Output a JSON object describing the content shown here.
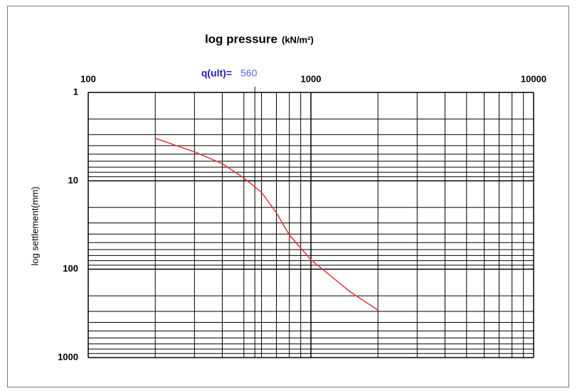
{
  "chart_data": {
    "type": "line",
    "title": "log pressure",
    "title_unit": "(kN/m²)",
    "y_label": "log settlement(mm)",
    "annotation": {
      "label": "q(ult)=",
      "value": 560
    },
    "x": [
      200,
      300,
      400,
      500,
      600,
      700,
      800,
      1000,
      1500,
      2000
    ],
    "series": [
      {
        "name": "settlement",
        "color": "#e8303a",
        "values": [
          3.3,
          4.7,
          6.4,
          9.3,
          13.5,
          23,
          41,
          78,
          180,
          290
        ]
      }
    ],
    "xscale": "log",
    "yscale": "log",
    "y_reversed": true,
    "xlim": [
      100,
      10000
    ],
    "xticks": [
      100,
      1000,
      10000
    ],
    "ylim": [
      1,
      1000
    ],
    "yticks": [
      1,
      10,
      100,
      1000
    ],
    "grid": true
  }
}
